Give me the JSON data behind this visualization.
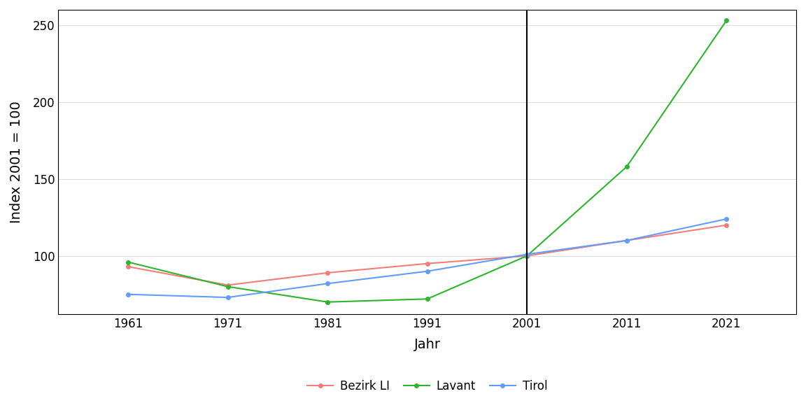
{
  "years": [
    1961,
    1971,
    1981,
    1991,
    2001,
    2011,
    2021
  ],
  "bezirk_li": [
    93,
    81,
    89,
    95,
    100,
    110,
    120
  ],
  "lavant": [
    96,
    80,
    70,
    72,
    100,
    158,
    253
  ],
  "tirol": [
    75,
    73,
    82,
    90,
    101,
    110,
    124
  ],
  "colors": {
    "bezirk_li": "#F07F7A",
    "lavant": "#2DB52D",
    "tirol": "#619CFF"
  },
  "xlabel": "Jahr",
  "ylabel": "Index 2001 = 100",
  "ylim": [
    62,
    260
  ],
  "yticks": [
    100,
    150,
    200,
    250
  ],
  "xticks": [
    1961,
    1971,
    1981,
    1991,
    2001,
    2011,
    2021
  ],
  "vline_x": 2001,
  "background_color": "#FFFFFF",
  "plot_bg_color": "#FFFFFF",
  "grid_color": "#DDDDDD",
  "border_color": "#000000",
  "legend_labels": [
    "Bezirk LI",
    "Lavant",
    "Tirol"
  ],
  "marker": "o",
  "markersize": 4,
  "linewidth": 1.5,
  "xlim_left": 1954,
  "xlim_right": 2028
}
